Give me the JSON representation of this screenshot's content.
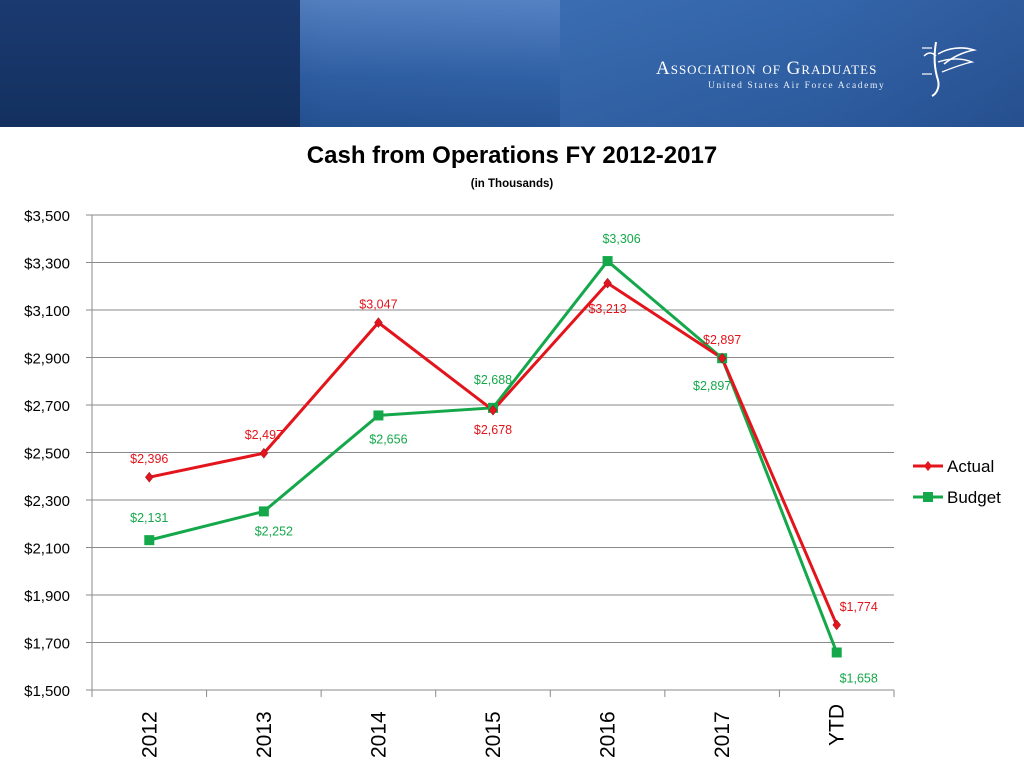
{
  "header": {
    "org_name": "Association of Graduates",
    "org_subtitle": "United States Air Force Academy"
  },
  "colors": {
    "actual": "#e3141b",
    "budget": "#14a84a",
    "grid": "#8a8a8a",
    "banner": "#23508f"
  },
  "chart_data": {
    "type": "line",
    "title": "Cash from Operations FY 2012-2017",
    "subtitle": "(in Thousands)",
    "categories": [
      "2012",
      "2013",
      "2014",
      "2015",
      "2016",
      "2017",
      "YTD"
    ],
    "series": [
      {
        "name": "Actual",
        "values": [
          2396,
          2497,
          3047,
          2678,
          3213,
          2897,
          1774
        ],
        "labels": [
          "$2,396",
          "$2,497",
          "$3,047",
          "$2,678",
          "$3,213",
          "$2,897",
          "$1,774"
        ]
      },
      {
        "name": "Budget",
        "values": [
          2131,
          2252,
          2656,
          2688,
          3306,
          2897,
          1658
        ],
        "labels": [
          "$2,131",
          "$2,252",
          "$2,656",
          "$2,688",
          "$3,306",
          "$2,897",
          "$1,658"
        ]
      }
    ],
    "ylim": [
      1500,
      3500
    ],
    "yticks": [
      1500,
      1700,
      1900,
      2100,
      2300,
      2500,
      2700,
      2900,
      3100,
      3300,
      3500
    ],
    "ytick_labels": [
      "$1,500",
      "$1,700",
      "$1,900",
      "$2,100",
      "$2,300",
      "$2,500",
      "$2,700",
      "$2,900",
      "$3,100",
      "$3,300",
      "$3,500"
    ],
    "grid": true,
    "legend": "right"
  }
}
